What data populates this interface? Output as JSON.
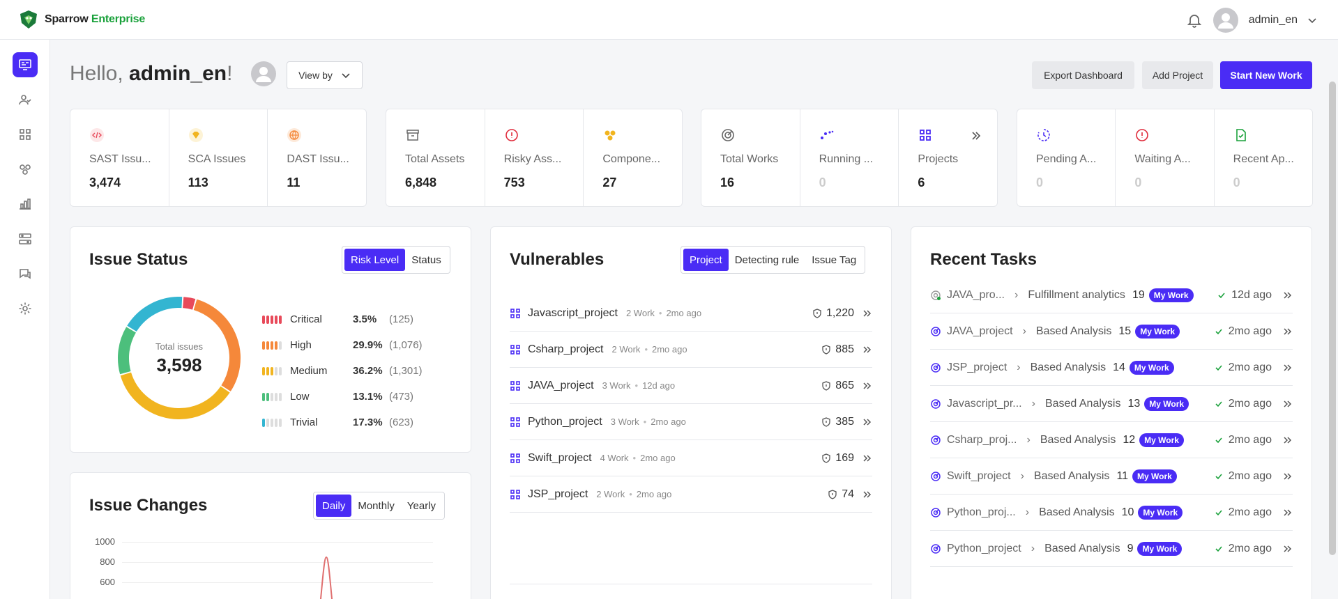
{
  "brand": {
    "name_part1": "Sparrow",
    "name_part2": "Enterprise"
  },
  "user": {
    "name": "admin_en"
  },
  "greeting": {
    "hello": "Hello,",
    "name": "admin_en",
    "mark": "!"
  },
  "view_by": "View by",
  "actions": {
    "export": "Export Dashboard",
    "add_project": "Add Project",
    "start": "Start New Work"
  },
  "stat_groups": [
    [
      {
        "icon": "sast-code-icon",
        "label": "SAST Issu...",
        "value": "3,474"
      },
      {
        "icon": "sca-gem-icon",
        "label": "SCA Issues",
        "value": "113"
      },
      {
        "icon": "dast-globe-icon",
        "label": "DAST Issu...",
        "value": "11"
      }
    ],
    [
      {
        "icon": "archive-box-icon",
        "label": "Total Assets",
        "value": "6,848"
      },
      {
        "icon": "alert-circle-icon",
        "label": "Risky Ass...",
        "value": "753"
      },
      {
        "icon": "components-icon",
        "label": "Compone...",
        "value": "27"
      }
    ],
    [
      {
        "icon": "target-icon",
        "label": "Total Works",
        "value": "16"
      },
      {
        "icon": "running-dots-icon",
        "label": "Running ...",
        "value": "0"
      },
      {
        "icon": "grid-icon",
        "label": "Projects",
        "value": "6"
      }
    ],
    [
      {
        "icon": "clock-icon",
        "label": "Pending A...",
        "value": "0"
      },
      {
        "icon": "alert-circle-icon",
        "label": "Waiting A...",
        "value": "0"
      },
      {
        "icon": "file-check-icon",
        "label": "Recent Ap...",
        "value": "0"
      }
    ]
  ],
  "issue_status": {
    "title": "Issue Status",
    "tabs": [
      "Risk Level",
      "Status"
    ],
    "total_label": "Total issues",
    "total_value": "3,598",
    "levels": [
      {
        "name": "Critical",
        "pct": "3.5%",
        "count": "(125)",
        "fraction": 0.035,
        "color": "#e84a5a"
      },
      {
        "name": "High",
        "pct": "29.9%",
        "count": "(1,076)",
        "fraction": 0.299,
        "color": "#f5883a"
      },
      {
        "name": "Medium",
        "pct": "36.2%",
        "count": "(1,301)",
        "fraction": 0.362,
        "color": "#f1b41f"
      },
      {
        "name": "Low",
        "pct": "13.1%",
        "count": "(473)",
        "fraction": 0.131,
        "color": "#4cbf7c"
      },
      {
        "name": "Trivial",
        "pct": "17.3%",
        "count": "(623)",
        "fraction": 0.173,
        "color": "#33b5d1"
      }
    ]
  },
  "issue_changes": {
    "title": "Issue Changes",
    "tabs": [
      "Daily",
      "Monthly",
      "Yearly"
    ],
    "yticks": [
      "1000",
      "800",
      "600"
    ]
  },
  "vulnerables": {
    "title": "Vulnerables",
    "tabs": [
      "Project",
      "Detecting rule",
      "Issue Tag"
    ],
    "rows": [
      {
        "name": "Javascript_project",
        "works": "2 Work",
        "ago": "2mo ago",
        "count": "1,220"
      },
      {
        "name": "Csharp_project",
        "works": "2 Work",
        "ago": "2mo ago",
        "count": "885"
      },
      {
        "name": "JAVA_project",
        "works": "3 Work",
        "ago": "12d ago",
        "count": "865"
      },
      {
        "name": "Python_project",
        "works": "3 Work",
        "ago": "2mo ago",
        "count": "385"
      },
      {
        "name": "Swift_project",
        "works": "4 Work",
        "ago": "2mo ago",
        "count": "169"
      },
      {
        "name": "JSP_project",
        "works": "2 Work",
        "ago": "2mo ago",
        "count": "74"
      }
    ]
  },
  "recent_tasks": {
    "title": "Recent Tasks",
    "badge": "My Work",
    "rows": [
      {
        "project": "JAVA_pro...",
        "analysis": "Fulfillment analytics",
        "num": "19",
        "ago": "12d ago"
      },
      {
        "project": "JAVA_project",
        "analysis": "Based Analysis",
        "num": "15",
        "ago": "2mo ago"
      },
      {
        "project": "JSP_project",
        "analysis": "Based Analysis",
        "num": "14",
        "ago": "2mo ago"
      },
      {
        "project": "Javascript_pr...",
        "analysis": "Based Analysis",
        "num": "13",
        "ago": "2mo ago"
      },
      {
        "project": "Csharp_proj...",
        "analysis": "Based Analysis",
        "num": "12",
        "ago": "2mo ago"
      },
      {
        "project": "Swift_project",
        "analysis": "Based Analysis",
        "num": "11",
        "ago": "2mo ago"
      },
      {
        "project": "Python_proj...",
        "analysis": "Based Analysis",
        "num": "10",
        "ago": "2mo ago"
      },
      {
        "project": "Python_project",
        "analysis": "Based Analysis",
        "num": "9",
        "ago": "2mo ago"
      }
    ]
  },
  "sidebar": {
    "icons": [
      "dashboard-icon",
      "user-check-icon",
      "grid-icon",
      "components-icon",
      "bar-chart-icon",
      "workflow-icon",
      "chat-icon",
      "settings-icon"
    ]
  },
  "colors": {
    "primary": "#4a2cf5",
    "brand_green": "#1aa13b"
  }
}
